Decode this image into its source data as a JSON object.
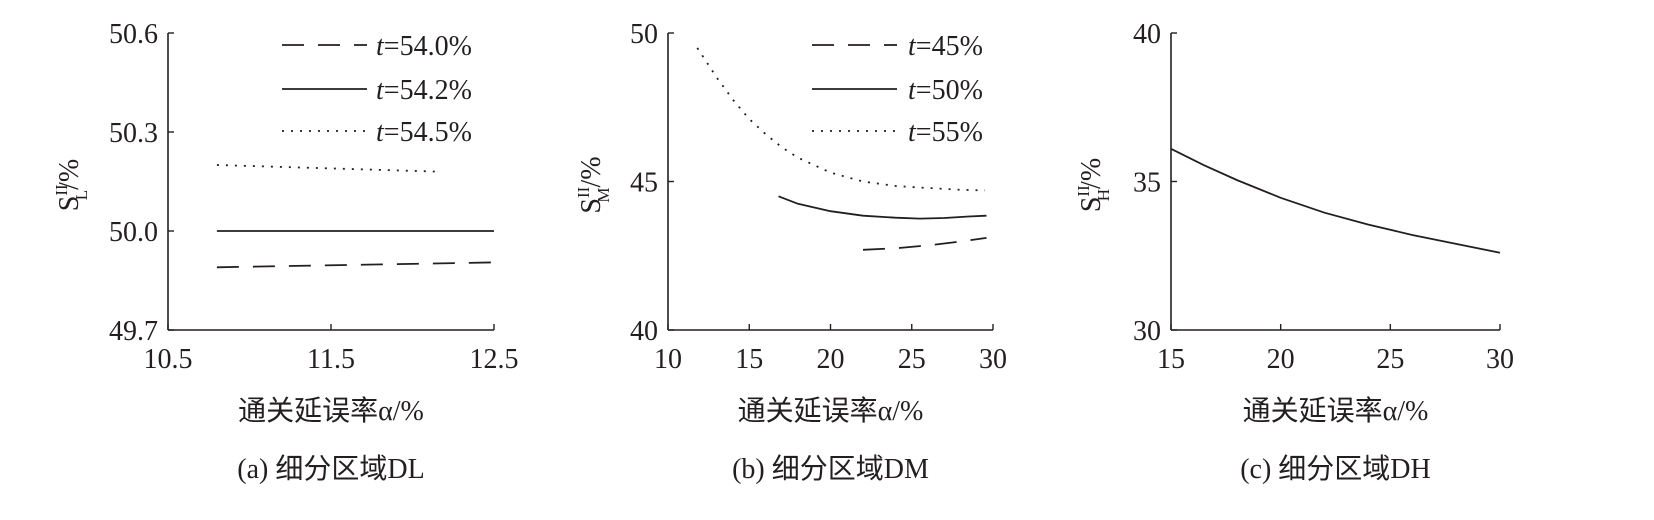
{
  "chart_data": [
    {
      "type": "line",
      "caption": "(a) 细分区域DL",
      "xlabel": "通关延误率α/%",
      "ylabel": {
        "main": "S",
        "sup": "II",
        "sub": "L",
        "unit": "/%"
      },
      "xlim": [
        10.5,
        12.5
      ],
      "ylim": [
        49.7,
        50.6
      ],
      "xticks": [
        "10.5",
        "11.5",
        "12.5"
      ],
      "yticks": [
        "49.7",
        "50.0",
        "50.3",
        "50.6"
      ],
      "legend_position": "top-right",
      "series": [
        {
          "name": "t=54.0%",
          "prefix": "t",
          "suffix": "=54.0%",
          "style": "dashed",
          "x": [
            10.8,
            12.5
          ],
          "y": [
            49.89,
            49.905
          ]
        },
        {
          "name": "t=54.2%",
          "prefix": "t",
          "suffix": "=54.2%",
          "style": "solid",
          "x": [
            10.8,
            12.5
          ],
          "y": [
            50.0,
            50.0
          ]
        },
        {
          "name": "t=54.5%",
          "prefix": "t",
          "suffix": "=54.5%",
          "style": "dotted",
          "x": [
            10.8,
            12.15
          ],
          "y": [
            50.2,
            50.18
          ]
        }
      ]
    },
    {
      "type": "line",
      "caption": "(b) 细分区域DM",
      "xlabel": "通关延误率α/%",
      "ylabel": {
        "main": "S",
        "sup": "II",
        "sub": "M",
        "unit": "/%"
      },
      "xlim": [
        10,
        30
      ],
      "ylim": [
        40,
        50
      ],
      "xticks": [
        "10",
        "15",
        "20",
        "25",
        "30"
      ],
      "yticks": [
        "40",
        "45",
        "50"
      ],
      "legend_position": "top-right",
      "series": [
        {
          "name": "t=45%",
          "prefix": "t",
          "suffix": "=45%",
          "style": "dashed",
          "x": [
            22,
            24,
            26,
            28,
            29.6
          ],
          "y": [
            42.7,
            42.75,
            42.85,
            42.98,
            43.1
          ]
        },
        {
          "name": "t=50%",
          "prefix": "t",
          "suffix": "=50%",
          "style": "solid",
          "x": [
            16.8,
            18,
            20,
            22,
            24,
            25.5,
            27,
            28.5,
            29.6
          ],
          "y": [
            44.5,
            44.25,
            44.0,
            43.85,
            43.78,
            43.75,
            43.77,
            43.82,
            43.85
          ]
        },
        {
          "name": "t=55%",
          "prefix": "t",
          "suffix": "=55%",
          "style": "dotted",
          "x": [
            11.8,
            13,
            14,
            15,
            16,
            17,
            18,
            20,
            22,
            24,
            26,
            28,
            29.5
          ],
          "y": [
            49.5,
            48.5,
            47.75,
            47.1,
            46.6,
            46.15,
            45.8,
            45.3,
            45.0,
            44.85,
            44.78,
            44.72,
            44.7
          ]
        }
      ]
    },
    {
      "type": "line",
      "caption": "(c) 细分区域DH",
      "xlabel": "通关延误率α/%",
      "ylabel": {
        "main": "S",
        "sup": "II",
        "sub": "H",
        "unit": "/%"
      },
      "xlim": [
        15,
        30
      ],
      "ylim": [
        30,
        40
      ],
      "xticks": [
        "15",
        "20",
        "25",
        "30"
      ],
      "yticks": [
        "30",
        "35",
        "40"
      ],
      "series": [
        {
          "name": "",
          "style": "solid",
          "x": [
            15,
            16.5,
            18,
            20,
            22,
            24,
            26,
            28,
            30
          ],
          "y": [
            36.1,
            35.55,
            35.05,
            34.45,
            33.95,
            33.55,
            33.2,
            32.9,
            32.6
          ]
        }
      ]
    }
  ]
}
